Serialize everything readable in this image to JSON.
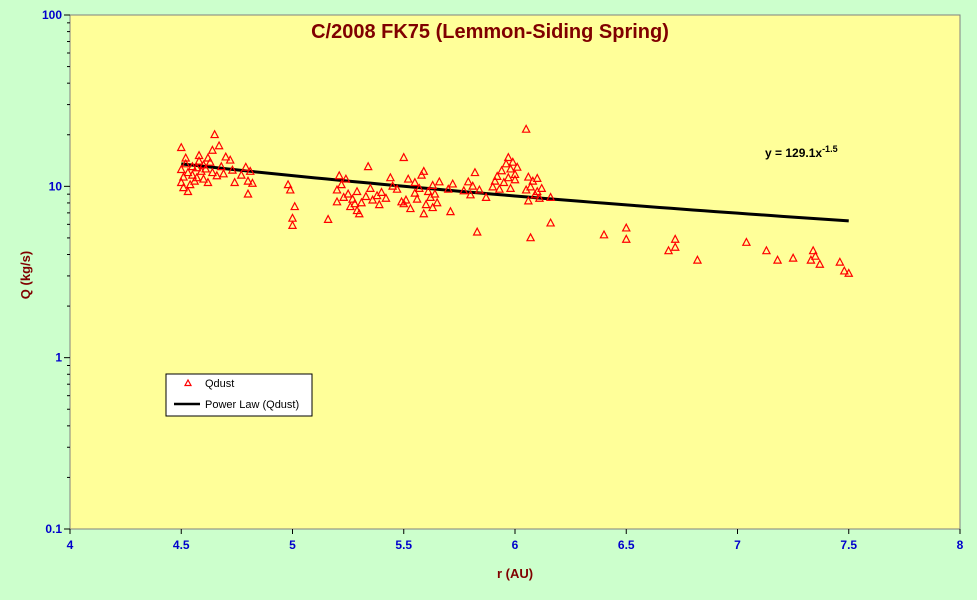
{
  "chart_data": {
    "type": "scatter",
    "title": "C/2008 FK75 (Lemmon-Siding Spring)",
    "xlabel": "r (AU)",
    "ylabel": "Q (kg/s)",
    "xlim": [
      4,
      8
    ],
    "ylim": [
      0.1,
      100
    ],
    "yscale": "log",
    "x_ticks": [
      "4",
      "4.5",
      "5",
      "5.5",
      "6",
      "6.5",
      "7",
      "7.5",
      "8"
    ],
    "y_ticks": [
      "0.1",
      "1",
      "10",
      "100"
    ],
    "grid": false,
    "legend_position": "left-middle",
    "colors": {
      "outer_background": "#ccffcc",
      "plot_background": "#ffff99",
      "marker": "#ff0000",
      "trendline": "#000000",
      "title": "#800000",
      "tick_labels": "#0000cc"
    },
    "series": [
      {
        "name": "Qdust",
        "marker": "triangle",
        "points": [
          [
            4.5,
            16.8
          ],
          [
            4.5,
            12.5
          ],
          [
            4.5,
            10.5
          ],
          [
            4.51,
            9.8
          ],
          [
            4.51,
            11.3
          ],
          [
            4.52,
            13.5
          ],
          [
            4.52,
            14.6
          ],
          [
            4.53,
            9.3
          ],
          [
            4.53,
            12.0
          ],
          [
            4.54,
            10.2
          ],
          [
            4.55,
            11.6
          ],
          [
            4.55,
            13.0
          ],
          [
            4.56,
            10.7
          ],
          [
            4.57,
            12.8
          ],
          [
            4.57,
            11.2
          ],
          [
            4.58,
            14.0
          ],
          [
            4.58,
            15.1
          ],
          [
            4.59,
            12.2
          ],
          [
            4.6,
            13.3
          ],
          [
            4.6,
            11.0
          ],
          [
            4.61,
            12.6
          ],
          [
            4.62,
            14.6
          ],
          [
            4.62,
            10.5
          ],
          [
            4.63,
            13.8
          ],
          [
            4.64,
            16.2
          ],
          [
            4.64,
            12.0
          ],
          [
            4.65,
            20.0
          ],
          [
            4.66,
            11.5
          ],
          [
            4.67,
            17.2
          ],
          [
            4.68,
            13.0
          ],
          [
            4.69,
            11.8
          ],
          [
            4.7,
            14.8
          ],
          [
            4.72,
            14.2
          ],
          [
            4.73,
            12.4
          ],
          [
            4.74,
            10.5
          ],
          [
            4.77,
            11.6
          ],
          [
            4.79,
            12.9
          ],
          [
            4.8,
            10.7
          ],
          [
            4.8,
            9.0
          ],
          [
            4.81,
            12.2
          ],
          [
            4.82,
            10.4
          ],
          [
            4.98,
            10.2
          ],
          [
            4.99,
            9.5
          ],
          [
            5.0,
            6.5
          ],
          [
            5.0,
            5.9
          ],
          [
            5.01,
            7.6
          ],
          [
            5.16,
            6.4
          ],
          [
            5.2,
            8.1
          ],
          [
            5.2,
            9.5
          ],
          [
            5.21,
            11.5
          ],
          [
            5.22,
            10.2
          ],
          [
            5.23,
            8.6
          ],
          [
            5.24,
            11.0
          ],
          [
            5.25,
            9.0
          ],
          [
            5.26,
            7.6
          ],
          [
            5.27,
            8.4
          ],
          [
            5.28,
            7.9
          ],
          [
            5.29,
            7.2
          ],
          [
            5.29,
            9.3
          ],
          [
            5.3,
            6.9
          ],
          [
            5.31,
            8.0
          ],
          [
            5.33,
            8.7
          ],
          [
            5.34,
            13.0
          ],
          [
            5.35,
            9.7
          ],
          [
            5.36,
            8.3
          ],
          [
            5.38,
            8.8
          ],
          [
            5.39,
            7.8
          ],
          [
            5.4,
            9.2
          ],
          [
            5.42,
            8.5
          ],
          [
            5.44,
            11.2
          ],
          [
            5.45,
            10.0
          ],
          [
            5.47,
            9.6
          ],
          [
            5.49,
            8.1
          ],
          [
            5.5,
            14.7
          ],
          [
            5.5,
            7.9
          ],
          [
            5.51,
            8.3
          ],
          [
            5.52,
            11.0
          ],
          [
            5.53,
            7.4
          ],
          [
            5.55,
            10.5
          ],
          [
            5.55,
            9.1
          ],
          [
            5.56,
            8.4
          ],
          [
            5.57,
            9.7
          ],
          [
            5.58,
            11.6
          ],
          [
            5.59,
            12.2
          ],
          [
            5.59,
            6.9
          ],
          [
            5.6,
            7.8
          ],
          [
            5.61,
            9.3
          ],
          [
            5.62,
            8.6
          ],
          [
            5.63,
            10.1
          ],
          [
            5.63,
            7.5
          ],
          [
            5.64,
            9.0
          ],
          [
            5.65,
            8.0
          ],
          [
            5.66,
            10.6
          ],
          [
            5.7,
            9.6
          ],
          [
            5.71,
            7.1
          ],
          [
            5.72,
            10.3
          ],
          [
            5.77,
            9.4
          ],
          [
            5.79,
            10.6
          ],
          [
            5.8,
            8.9
          ],
          [
            5.81,
            10.0
          ],
          [
            5.82,
            12.0
          ],
          [
            5.83,
            5.4
          ],
          [
            5.84,
            9.5
          ],
          [
            5.87,
            8.6
          ],
          [
            5.9,
            9.9
          ],
          [
            5.91,
            10.7
          ],
          [
            5.92,
            11.4
          ],
          [
            5.93,
            9.6
          ],
          [
            5.94,
            12.3
          ],
          [
            5.95,
            10.5
          ],
          [
            5.96,
            13.5
          ],
          [
            5.97,
            11.2
          ],
          [
            5.97,
            14.7
          ],
          [
            5.98,
            9.7
          ],
          [
            5.98,
            12.6
          ],
          [
            5.99,
            13.8
          ],
          [
            6.0,
            10.9
          ],
          [
            6.0,
            11.7
          ],
          [
            6.01,
            12.9
          ],
          [
            6.05,
            21.5
          ],
          [
            6.05,
            9.5
          ],
          [
            6.06,
            8.2
          ],
          [
            6.06,
            11.3
          ],
          [
            6.07,
            9.9
          ],
          [
            6.07,
            5.0
          ],
          [
            6.08,
            10.7
          ],
          [
            6.09,
            8.9
          ],
          [
            6.1,
            11.1
          ],
          [
            6.1,
            9.3
          ],
          [
            6.11,
            8.5
          ],
          [
            6.12,
            9.7
          ],
          [
            6.16,
            8.6
          ],
          [
            6.16,
            6.1
          ],
          [
            6.4,
            5.2
          ],
          [
            6.5,
            5.7
          ],
          [
            6.5,
            4.9
          ],
          [
            6.69,
            4.2
          ],
          [
            6.72,
            4.9
          ],
          [
            6.72,
            4.4
          ],
          [
            6.82,
            3.7
          ],
          [
            7.04,
            4.7
          ],
          [
            7.13,
            4.2
          ],
          [
            7.18,
            3.7
          ],
          [
            7.25,
            3.8
          ],
          [
            7.33,
            3.7
          ],
          [
            7.34,
            4.2
          ],
          [
            7.35,
            3.9
          ],
          [
            7.37,
            3.5
          ],
          [
            7.46,
            3.6
          ],
          [
            7.48,
            3.2
          ],
          [
            7.5,
            3.1
          ]
        ]
      },
      {
        "name": "Power Law (Qdust)",
        "type": "line",
        "coefficient": 129.1,
        "exponent": -1.5,
        "x_range": [
          4.5,
          7.5
        ]
      }
    ],
    "annotation": {
      "prefix": "y = 129.1x",
      "superscript": "-1.5"
    },
    "legend": {
      "entries": [
        "Qdust",
        "Power Law (Qdust)"
      ]
    }
  }
}
